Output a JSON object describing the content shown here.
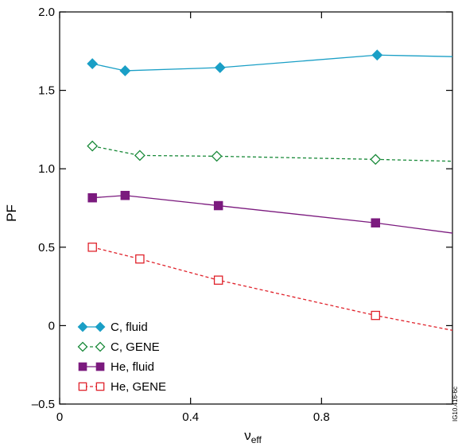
{
  "chart_data": {
    "type": "line",
    "xlabel": "ν",
    "xlabel_sub": "eff",
    "ylabel": "PF",
    "xlim": [
      0,
      1.2
    ],
    "ylim": [
      -0.5,
      2.0
    ],
    "xticks": [
      {
        "value": 0,
        "label": "0"
      },
      {
        "value": 0.4,
        "label": "0.4"
      },
      {
        "value": 0.8,
        "label": "0.8"
      }
    ],
    "yticks": [
      {
        "value": -0.5,
        "label": "–0.5"
      },
      {
        "value": 0,
        "label": "0"
      },
      {
        "value": 0.5,
        "label": "0.5"
      },
      {
        "value": 1.0,
        "label": "1.0"
      },
      {
        "value": 1.5,
        "label": "1.5"
      },
      {
        "value": 2.0,
        "label": "2.0"
      }
    ],
    "legend_position": "bottom-left",
    "series": [
      {
        "name": "C, fluid",
        "color": "#1a9fc6",
        "marker": "diamond",
        "filled": true,
        "dashed": false,
        "x": [
          0.1,
          0.2,
          0.49,
          0.97,
          1.2
        ],
        "y": [
          1.67,
          1.625,
          1.645,
          1.725,
          1.715
        ],
        "markers": [
          0,
          1,
          2,
          3
        ]
      },
      {
        "name": "C, GENE",
        "color": "#1a8a3a",
        "marker": "diamond",
        "filled": false,
        "dashed": true,
        "x": [
          0.1,
          0.245,
          0.48,
          0.965,
          1.2
        ],
        "y": [
          1.145,
          1.085,
          1.08,
          1.06,
          1.048
        ],
        "markers": [
          0,
          1,
          2,
          3
        ]
      },
      {
        "name": "He, fluid",
        "color": "#7b1a7e",
        "marker": "square",
        "filled": true,
        "dashed": false,
        "x": [
          0.1,
          0.2,
          0.485,
          0.965,
          1.2
        ],
        "y": [
          0.815,
          0.83,
          0.765,
          0.655,
          0.59
        ],
        "markers": [
          0,
          1,
          2,
          3
        ]
      },
      {
        "name": "He, GENE",
        "color": "#e0222b",
        "marker": "square",
        "filled": false,
        "dashed": true,
        "x": [
          0.1,
          0.245,
          0.485,
          0.965,
          1.2
        ],
        "y": [
          0.5,
          0.425,
          0.29,
          0.065,
          -0.03
        ],
        "markers": [
          0,
          1,
          2,
          3
        ]
      }
    ]
  },
  "watermark": "IG10.416-6c"
}
